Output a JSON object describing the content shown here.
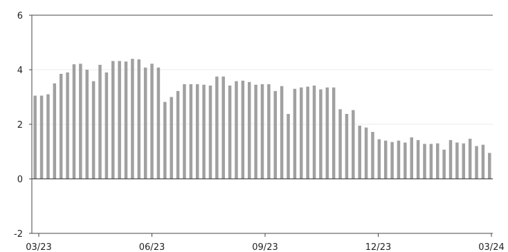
{
  "chart_data": {
    "type": "bar",
    "title": "",
    "xlabel": "",
    "ylabel": "",
    "ylim": [
      -2,
      6
    ],
    "yticks": [
      6,
      4,
      2,
      0,
      -2
    ],
    "xticks": [
      "03/23",
      "06/23",
      "09/23",
      "12/23",
      "03/24"
    ],
    "grid": true,
    "legend": "none",
    "bar_color": "#a0a0a0",
    "series": [
      {
        "values": [
          3.05,
          3.05,
          3.1,
          3.5,
          3.85,
          3.9,
          4.2,
          4.22,
          4.0,
          3.58,
          4.18,
          3.9,
          4.32,
          4.32,
          4.3,
          4.4,
          4.38,
          4.08,
          4.22,
          4.08,
          2.82,
          3.0,
          3.22,
          3.47,
          3.47,
          3.47,
          3.45,
          3.42,
          3.75,
          3.75,
          3.42,
          3.58,
          3.6,
          3.55,
          3.45,
          3.47,
          3.47,
          3.22,
          3.4,
          2.38,
          3.3,
          3.35,
          3.38,
          3.42,
          3.28,
          3.35,
          3.35,
          2.55,
          2.38,
          2.52,
          1.95,
          1.88,
          1.72,
          1.45,
          1.4,
          1.35,
          1.4,
          1.33,
          1.52,
          1.42,
          1.28,
          1.28,
          1.3,
          1.07,
          1.42,
          1.33,
          1.3,
          1.47,
          1.2,
          1.25,
          0.95
        ]
      }
    ]
  }
}
